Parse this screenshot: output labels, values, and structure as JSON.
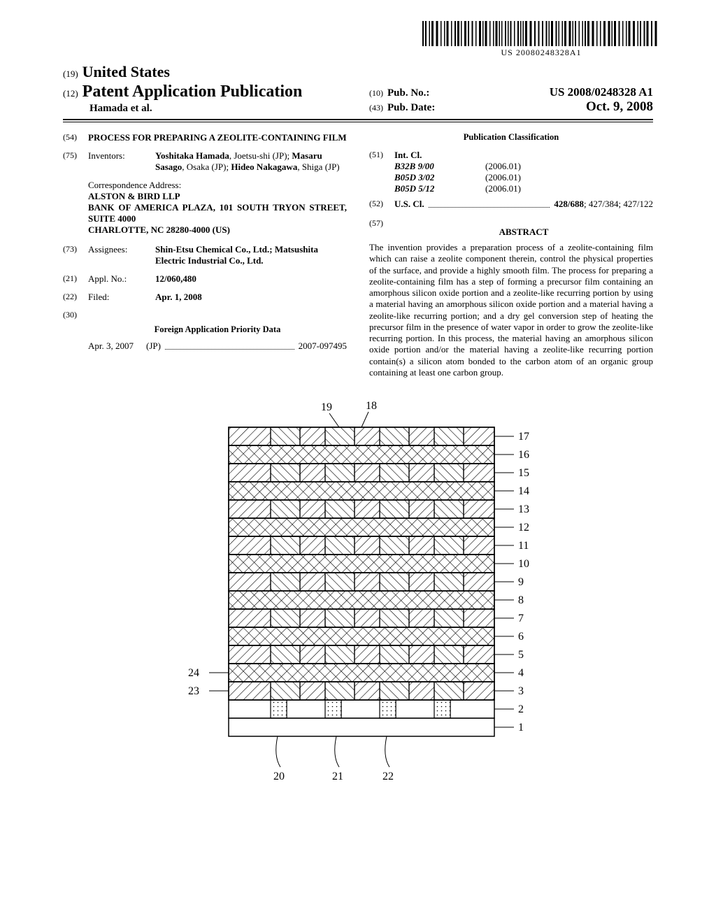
{
  "barcode": {
    "text": "US 20080248328A1"
  },
  "header": {
    "line19_num": "(19)",
    "line19_text": "United States",
    "line12_num": "(12)",
    "line12_text": "Patent Application Publication",
    "author": "Hamada et al.",
    "pubno_num": "(10)",
    "pubno_label": "Pub. No.:",
    "pubno_value": "US 2008/0248328 A1",
    "pubdate_num": "(43)",
    "pubdate_label": "Pub. Date:",
    "pubdate_value": "Oct. 9, 2008"
  },
  "left": {
    "f54_num": "(54)",
    "f54_value": "PROCESS FOR PREPARING A ZEOLITE-CONTAINING FILM",
    "f75_num": "(75)",
    "f75_label": "Inventors:",
    "inv1_bold": "Yoshitaka Hamada",
    "inv1_rest": ", Joetsu-shi (JP); ",
    "inv2_bold": "Masaru Sasago",
    "inv2_rest": ", Osaka (JP); ",
    "inv3_bold": "Hideo Nakagawa",
    "inv3_rest": ", Shiga (JP)",
    "corr_label": "Correspondence Address:",
    "corr1": "ALSTON & BIRD LLP",
    "corr2": "BANK OF AMERICA PLAZA, 101 SOUTH TRYON STREET, SUITE 4000",
    "corr3": "CHARLOTTE, NC 28280-4000 (US)",
    "f73_num": "(73)",
    "f73_label": "Assignees:",
    "f73_value": "Shin-Etsu Chemical Co., Ltd.; Matsushita Electric Industrial Co., Ltd.",
    "f21_num": "(21)",
    "f21_label": "Appl. No.:",
    "f21_value": "12/060,480",
    "f22_num": "(22)",
    "f22_label": "Filed:",
    "f22_value": "Apr. 1, 2008",
    "f30_num": "(30)",
    "f30_header": "Foreign Application Priority Data",
    "prio_date": "Apr. 3, 2007",
    "prio_country": "(JP)",
    "prio_num": "2007-097495"
  },
  "right": {
    "pub_class_header": "Publication Classification",
    "f51_num": "(51)",
    "f51_label": "Int. Cl.",
    "ic1_code": "B32B  9/00",
    "ic1_year": "(2006.01)",
    "ic2_code": "B05D  3/02",
    "ic2_year": "(2006.01)",
    "ic3_code": "B05D  5/12",
    "ic3_year": "(2006.01)",
    "f52_num": "(52)",
    "f52_label": "U.S. Cl.",
    "f52_value_bold": "428/688",
    "f52_value_rest": "; 427/384; 427/122",
    "f57_num": "(57)",
    "abstract_header": "ABSTRACT",
    "abstract_text": "The invention provides a preparation process of a zeolite-containing film which can raise a zeolite component therein, control the physical properties of the surface, and provide a highly smooth film. The process for preparing a zeolite-containing film has a step of forming a precursor film containing an amorphous silicon oxide portion and a zeolite-like recurring portion by using a material having an amorphous silicon oxide portion and a material having a zeolite-like recurring portion; and a dry gel conversion step of heating the precursor film in the presence of water vapor in order to grow the zeolite-like recurring portion. In this process, the material having an amorphous silicon oxide portion and/or the material having a zeolite-like recurring portion contain(s) a silicon atom bonded to the carbon atom of an organic group containing at least one carbon group."
  },
  "figure": {
    "top_labels": [
      "18",
      "19"
    ],
    "right_labels": [
      "17",
      "16",
      "15",
      "14",
      "13",
      "12",
      "11",
      "10",
      "9",
      "8",
      "7",
      "6",
      "5",
      "4",
      "3",
      "2",
      "1"
    ],
    "left_labels": [
      "24",
      "23"
    ],
    "bottom_labels": [
      "20",
      "21",
      "22"
    ],
    "layer_color": "#ffffff",
    "line_color": "#000000",
    "font_size_pt": 16,
    "layer_height": 26,
    "diagram_width": 380,
    "n_layers": 17
  }
}
